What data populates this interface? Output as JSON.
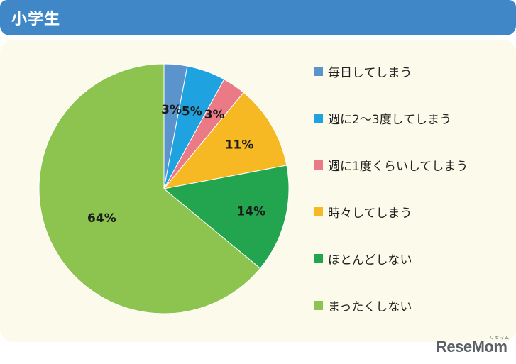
{
  "header": {
    "title": "小学生"
  },
  "chart_data": {
    "type": "pie",
    "categories": [
      "毎日してしまう",
      "週に2〜3度してしまう",
      "週に1度くらいしてしまう",
      "時々してしまう",
      "ほとんどしない",
      "まったくしない"
    ],
    "values": [
      3,
      5,
      3,
      11,
      14,
      64
    ],
    "value_labels": [
      "3%",
      "5%",
      "3%",
      "11%",
      "14%",
      "64%"
    ],
    "colors": [
      "#5b93cc",
      "#1fa3e0",
      "#ea7a86",
      "#f6b923",
      "#23a550",
      "#8cc44f"
    ],
    "legend_position": "right",
    "start_angle": "12 o'clock",
    "direction": "clockwise"
  },
  "watermark": {
    "logo": "ReseMom",
    "logo_sub": "リセマム"
  }
}
